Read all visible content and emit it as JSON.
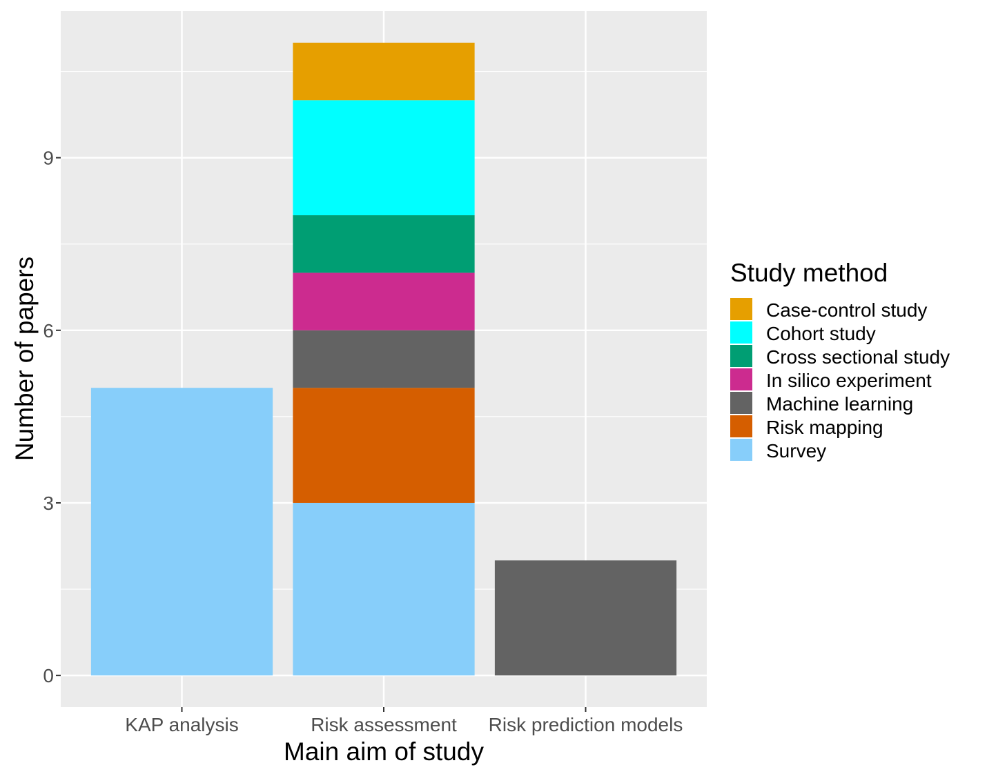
{
  "chart_data": {
    "type": "bar",
    "stacked": true,
    "title": "",
    "xlabel": "Main aim of study",
    "ylabel": "Number of papers",
    "ylim": [
      -0.55,
      11.55
    ],
    "yticks": [
      0,
      3,
      6,
      9
    ],
    "y_minor_ticks": [
      1.5,
      4.5,
      7.5,
      10.5
    ],
    "categories": [
      "KAP analysis",
      "Risk assessment",
      "Risk prediction models"
    ],
    "legend_title": "Study method",
    "legend_position": "right",
    "grid": true,
    "series": [
      {
        "name": "Case-control study",
        "color": "#E69F00",
        "values": [
          0,
          1,
          0
        ]
      },
      {
        "name": "Cohort study",
        "color": "#00FFFF",
        "values": [
          0,
          2,
          0
        ]
      },
      {
        "name": "Cross sectional study",
        "color": "#009E73",
        "values": [
          0,
          1,
          0
        ]
      },
      {
        "name": "In silico experiment",
        "color": "#CC2B8F",
        "values": [
          0,
          1,
          0
        ]
      },
      {
        "name": "Machine learning",
        "color": "#636363",
        "values": [
          0,
          1,
          2
        ]
      },
      {
        "name": "Risk mapping",
        "color": "#D55E00",
        "values": [
          0,
          2,
          0
        ]
      },
      {
        "name": "Survey",
        "color": "#87CEFA",
        "values": [
          5,
          3,
          0
        ]
      }
    ],
    "panel_background": "#EBEBEB",
    "grid_color": "#FFFFFF"
  }
}
